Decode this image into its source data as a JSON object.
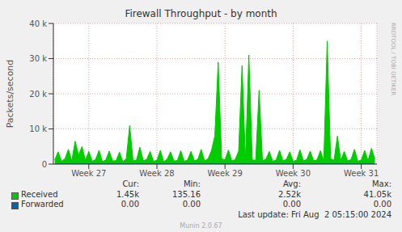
{
  "chart_data": {
    "type": "area",
    "title": "Firewall Throughput - by month",
    "y_label": "Packets/second",
    "x": [
      26.5,
      26.55,
      26.6,
      26.65,
      26.7,
      26.75,
      26.8,
      26.85,
      26.9,
      26.95,
      27,
      27.05,
      27.1,
      27.15,
      27.2,
      27.25,
      27.3,
      27.35,
      27.4,
      27.45,
      27.5,
      27.55,
      27.6,
      27.65,
      27.7,
      27.75,
      27.8,
      27.85,
      27.9,
      27.95,
      28,
      28.05,
      28.1,
      28.15,
      28.2,
      28.25,
      28.3,
      28.35,
      28.4,
      28.45,
      28.5,
      28.55,
      28.6,
      28.65,
      28.7,
      28.75,
      28.8,
      28.85,
      28.9,
      28.95,
      29,
      29.05,
      29.1,
      29.15,
      29.2,
      29.25,
      29.3,
      29.35,
      29.4,
      29.45,
      29.5,
      29.55,
      29.6,
      29.65,
      29.7,
      29.75,
      29.8,
      29.85,
      29.9,
      29.95,
      30,
      30.05,
      30.1,
      30.15,
      30.2,
      30.25,
      30.3,
      30.35,
      30.4,
      30.45,
      30.5,
      30.55,
      30.6,
      30.65,
      30.7,
      30.75,
      30.8,
      30.85,
      30.9,
      30.95,
      31,
      31.05,
      31.1,
      31.15,
      31.2
    ],
    "xlim": [
      26.48,
      31.23
    ],
    "xticks": [
      {
        "value": 27,
        "label": "Week 27"
      },
      {
        "value": 28,
        "label": "Week 28"
      },
      {
        "value": 29,
        "label": "Week 29"
      },
      {
        "value": 30,
        "label": "Week 30"
      },
      {
        "value": 31,
        "label": "Week 31"
      }
    ],
    "ylim": [
      0,
      40000
    ],
    "yticks": [
      0,
      {
        "value": 10000,
        "label": "10 k"
      },
      {
        "value": 20000,
        "label": "20 k"
      },
      {
        "value": 30000,
        "label": "30 k"
      },
      {
        "value": 40000,
        "label": "40 k"
      }
    ],
    "grid": true,
    "stats_columns": [
      "Cur:",
      "Min:",
      "Avg:",
      "Max:"
    ],
    "series": [
      {
        "name": "Received",
        "color": "#00cc00",
        "stats": [
          1450,
          135.16,
          2520,
          41050
        ],
        "stats_labels": [
          "1.45k",
          "135.16",
          "2.52k",
          "41.05k"
        ],
        "values": [
          1200,
          3500,
          800,
          1500,
          4200,
          900,
          6500,
          2500,
          5000,
          1100,
          3600,
          800,
          1300,
          3900,
          700,
          1200,
          3700,
          900,
          1000,
          3400,
          700,
          1500,
          11000,
          900,
          1200,
          4800,
          1000,
          1300,
          3600,
          800,
          1100,
          3900,
          700,
          1400,
          3500,
          900,
          1000,
          3800,
          800,
          1200,
          3600,
          1000,
          1300,
          4200,
          900,
          1500,
          3800,
          8000,
          29000,
          1500,
          1200,
          4000,
          900,
          1300,
          3700,
          28000,
          1000,
          31000,
          1200,
          1100,
          21000,
          900,
          1400,
          3600,
          800,
          1200,
          3900,
          1000,
          1300,
          3500,
          800,
          1100,
          4100,
          900,
          1300,
          3700,
          1000,
          1200,
          3800,
          900,
          35000,
          1500,
          1100,
          8000,
          1000,
          3600,
          900,
          1300,
          4200,
          800,
          1200,
          3900,
          1000,
          4500,
          1450
        ]
      },
      {
        "name": "Forwarded",
        "color": "#0066b3",
        "type": "line",
        "stats": [
          0,
          0,
          0,
          0
        ],
        "stats_labels": [
          "0.00",
          "0.00",
          "0.00",
          "0.00"
        ],
        "values": [
          0,
          0,
          0,
          0,
          0,
          0,
          0,
          0,
          0,
          0,
          0,
          0,
          0,
          0,
          0,
          0,
          0,
          0,
          0,
          0,
          0,
          0,
          0,
          0,
          0,
          0,
          0,
          0,
          0,
          0,
          0,
          0,
          0,
          0,
          0,
          0,
          0,
          0,
          0,
          0,
          0,
          0,
          0,
          0,
          0,
          0,
          0,
          0,
          0,
          0,
          0,
          0,
          0,
          0,
          0,
          0,
          0,
          0,
          0,
          0,
          0,
          0,
          0,
          0,
          0,
          0,
          0,
          0,
          0,
          0,
          0,
          0,
          0,
          0,
          0,
          0,
          0,
          0,
          0,
          0,
          0,
          0,
          0,
          0,
          0,
          0,
          0,
          0,
          0,
          0,
          0,
          0,
          0,
          0,
          0
        ]
      }
    ],
    "footer": "Last update: Fri Aug  2 05:15:00 2024",
    "credit": "Munin 2.0.67",
    "watermark": "RRDTOOL / TOBI OETIKER"
  }
}
